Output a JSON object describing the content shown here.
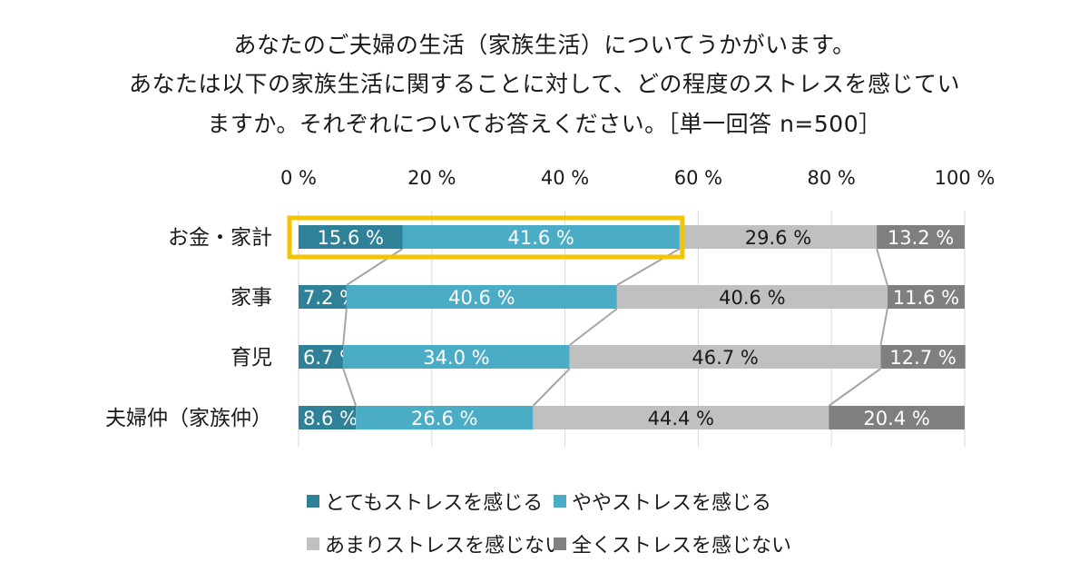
{
  "title": {
    "line1": "あなたのご夫婦の生活（家族生活）についてうかがいます。",
    "line2": "あなたは以下の家族生活に関することに対して、どの程度のストレスを感じてい",
    "line3": "ますか。それぞれについてお答えください。［単一回答 n=500］"
  },
  "colors": {
    "very": "#2e8196",
    "somewhat": "#4bacc6",
    "not_much": "#c0c0c0",
    "none": "#7f7f7f",
    "highlight": "#f5c400",
    "connector": "#a6a6a6"
  },
  "chart_data": {
    "type": "bar",
    "orientation": "horizontal",
    "stacked": true,
    "categories": [
      "お金・家計",
      "家事",
      "育児",
      "夫婦仲（家族仲）"
    ],
    "series": [
      {
        "name": "とてもストレスを感じる",
        "values": [
          15.6,
          7.2,
          6.7,
          8.6
        ],
        "color": "#2e8196"
      },
      {
        "name": "ややストレスを感じる",
        "values": [
          41.6,
          40.6,
          34.0,
          26.6
        ],
        "color": "#4bacc6"
      },
      {
        "name": "あまりストレスを感じない",
        "values": [
          29.6,
          40.6,
          46.7,
          44.4
        ],
        "color": "#c0c0c0"
      },
      {
        "name": "全くストレスを感じない",
        "values": [
          13.2,
          11.6,
          12.7,
          20.4
        ],
        "color": "#7f7f7f"
      }
    ],
    "xticks": [
      "0 %",
      "20 %",
      "40 %",
      "60 %",
      "80 %",
      "100 %"
    ],
    "xlim": [
      0,
      100
    ],
    "value_suffix": " %",
    "series_lines": true,
    "highlight": {
      "category": "お金・家計",
      "series": [
        "とてもストレスを感じる",
        "ややストレスを感じる"
      ]
    },
    "legend_position": "bottom"
  }
}
